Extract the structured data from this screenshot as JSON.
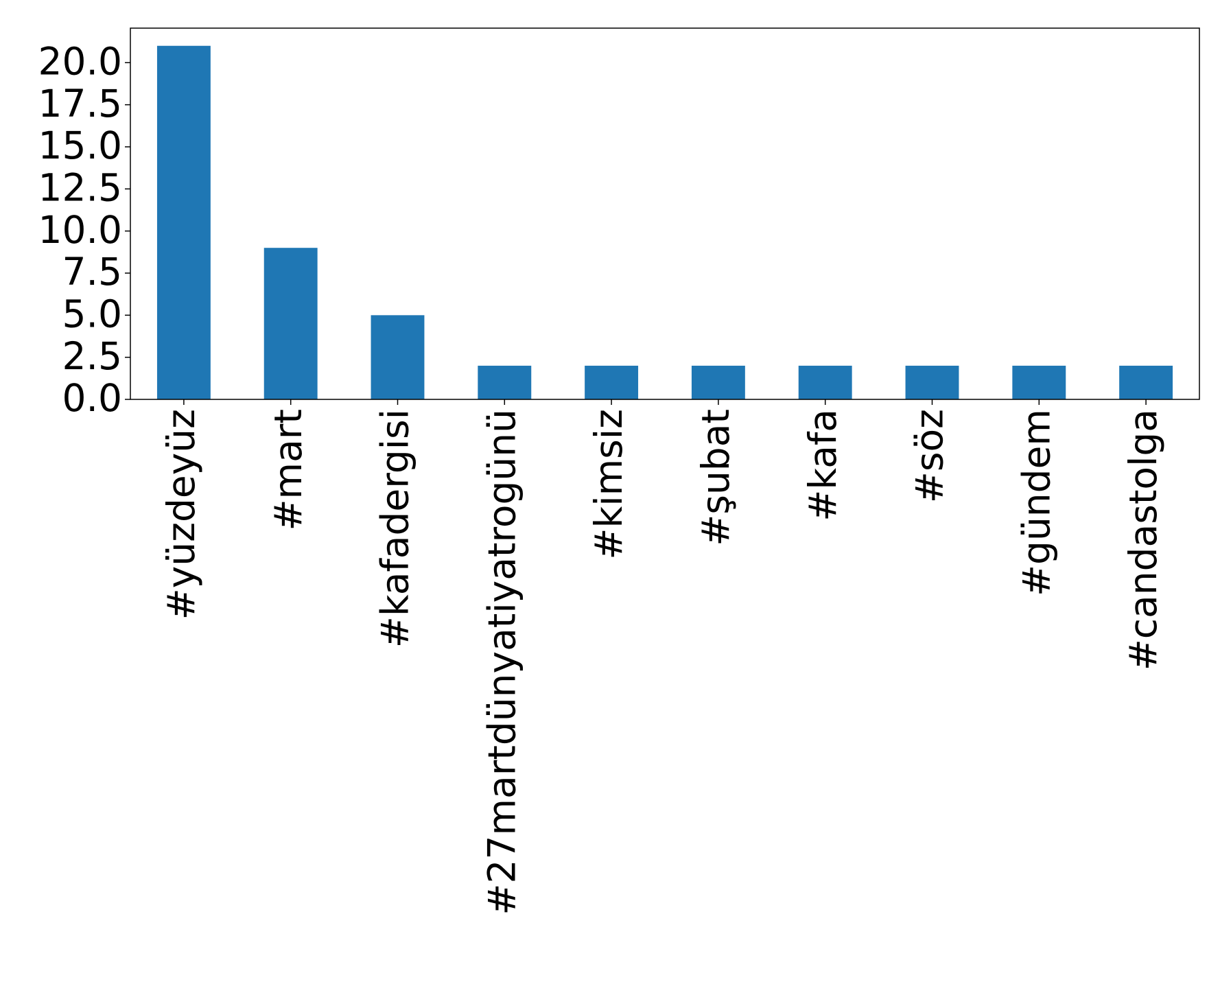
{
  "chart_data": {
    "type": "bar",
    "categories": [
      "#yüzdeyüz",
      "#mart",
      "#kafadergisi",
      "#27martdünyatiyatrogünü",
      "#kimsiz",
      "#şubat",
      "#kafa",
      "#söz",
      "#gündem",
      "#candastolga"
    ],
    "values": [
      21,
      9,
      5,
      2,
      2,
      2,
      2,
      2,
      2,
      2
    ],
    "color": "#1f77b4",
    "ylim": [
      0,
      22.05
    ],
    "yticks": [
      {
        "value": 0,
        "label": "0.0"
      },
      {
        "value": 2.5,
        "label": "2.5"
      },
      {
        "value": 5,
        "label": "5.0"
      },
      {
        "value": 7.5,
        "label": "7.5"
      },
      {
        "value": 10,
        "label": "10.0"
      },
      {
        "value": 12.5,
        "label": "12.5"
      },
      {
        "value": 15,
        "label": "15.0"
      },
      {
        "value": 17.5,
        "label": "17.5"
      },
      {
        "value": 20,
        "label": "20.0"
      }
    ],
    "grid": false
  }
}
